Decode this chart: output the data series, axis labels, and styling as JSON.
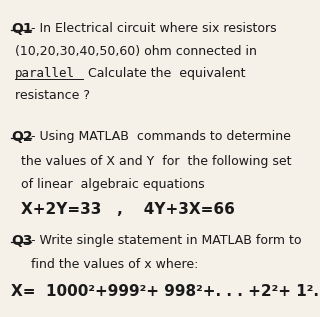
{
  "background_color": "#f5f0e8",
  "text_color": "#1a1a1a",
  "q1_label": "Q1",
  "q1_line1": "- In Electrical circuit where six resistors",
  "q1_line2": "(10,20,30,40,50,60) ohm connected in",
  "q1_line3_underline": "parallel",
  "q1_line3_rest": " Calculate the  equivalent",
  "q1_line4": "resistance ?",
  "q2_label": "Q2",
  "q2_line1": "- Using MATLAB  commands to determine",
  "q2_line2": "the values of X and Y  for  the following set",
  "q2_line3": "of linear  algebraic equations",
  "q2_line4": "X+2Y=33   ,    4Y+3X=66",
  "q3_label": "Q3",
  "q3_line1": "- Write single statement in MATLAB form to",
  "q3_line2": "find the values of x where:",
  "q3_line3": "X=  1000²+999²+ 998²+. . . +2²+ 1².",
  "font_size_label": 10,
  "font_size_body": 9,
  "font_size_equation": 11
}
